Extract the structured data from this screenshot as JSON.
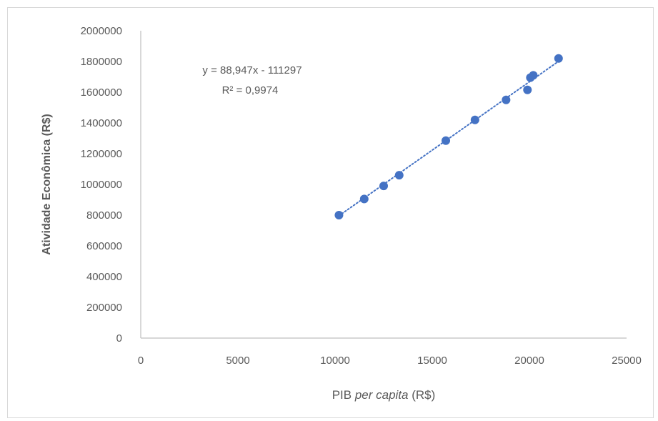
{
  "chart_data": {
    "type": "scatter",
    "xlabel_parts": [
      "PIB ",
      "per capita",
      " (R$)"
    ],
    "ylabel": "Atividade Econômica  (R$)",
    "xlim": [
      0,
      25000
    ],
    "ylim": [
      0,
      2000000
    ],
    "x_ticks": [
      "0",
      "5000",
      "10000",
      "15000",
      "20000",
      "25000"
    ],
    "y_ticks": [
      "0",
      "200000",
      "400000",
      "600000",
      "800000",
      "1000000",
      "1200000",
      "1400000",
      "1600000",
      "1800000",
      "2000000"
    ],
    "grid": false,
    "legend": "none",
    "series": [
      {
        "x": [
          10200,
          11500,
          12500,
          13300,
          15700,
          17200,
          18800,
          19900,
          20050,
          20200,
          21500
        ],
        "y": [
          800000,
          905000,
          990000,
          1060000,
          1285000,
          1420000,
          1550000,
          1615000,
          1695000,
          1710000,
          1820000
        ]
      }
    ],
    "trendline": {
      "slope": 88.947,
      "intercept": -111297,
      "style": "dotted",
      "x_range": [
        10200,
        21500
      ]
    },
    "annotations": {
      "equation": "y = 88,947x - 111297",
      "r_squared": "R² = 0,9974"
    },
    "colors": {
      "marker": "#4472c4",
      "axis": "#bfbfbf",
      "text": "#595959"
    }
  }
}
